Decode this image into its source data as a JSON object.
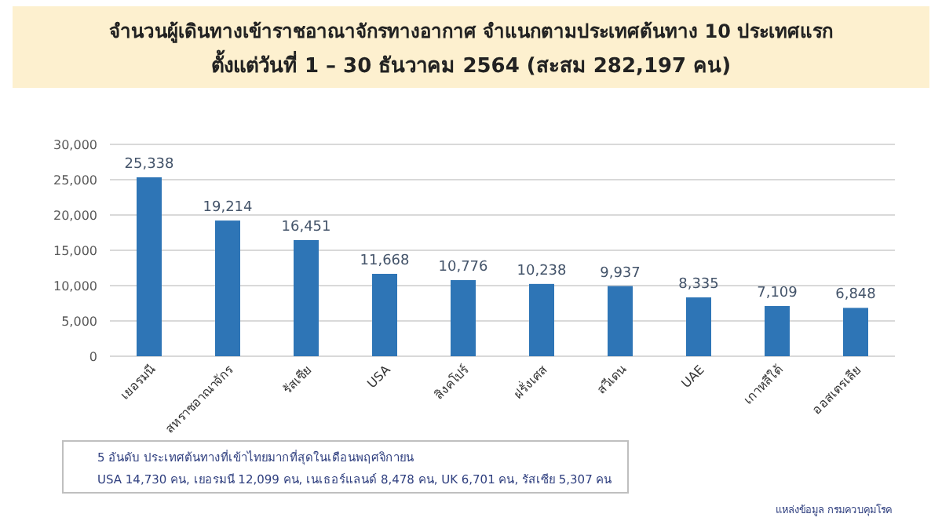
{
  "chart_data": {
    "type": "bar",
    "title": "จำนวนผู้เดินทางเข้าราชอาณาจักรทางอากาศ จำแนกตามประเทศต้นทาง 10 ประเทศแรก",
    "subtitle": "ตั้งแต่วันที่ 1 – 30  ธันวาคม 2564  (สะสม 282,197 คน)",
    "categories": [
      "เยอรมนี",
      "สหราชอาณาจักร",
      "รัสเซีย",
      "USA",
      "สิงคโปร์",
      "ฝรั่งเศส",
      "สวีเดน",
      "UAE",
      "เกาหลีใต้",
      "ออสเตรเลีย"
    ],
    "values": [
      25338,
      19214,
      16451,
      11668,
      10776,
      10238,
      9937,
      8335,
      7109,
      6848
    ],
    "color": "#2e75b6",
    "ylim": [
      0,
      30000
    ],
    "yticks": [
      {
        "value": 0,
        "label": "0"
      },
      {
        "value": 5000,
        "label": "5,000"
      },
      {
        "value": 10000,
        "label": "10,000"
      },
      {
        "value": 15000,
        "label": "15,000"
      },
      {
        "value": 20000,
        "label": "20,000"
      },
      {
        "value": 25000,
        "label": "25,000"
      },
      {
        "value": 30000,
        "label": "30,000"
      }
    ],
    "grid": "y",
    "value_labels": [
      "25,338",
      "19,214",
      "16,451",
      "11,668",
      "10,776",
      "10,238",
      "9,937",
      "8,335",
      "7,109",
      "6,848"
    ],
    "annotations": [
      "5 อันดับ ประเทศต้นทางที่เข้าไทยมากที่สุดในเดือนพฤศจิกายน",
      "USA  14,730  คน,  เยอรมนี  12,099  คน,  เนเธอร์แลนด์  8,478  คน, UK  6,701  คน,  รัสเซีย  5,307  คน",
      "แหล่งข้อมูล กรมควบคุมโรค"
    ]
  }
}
